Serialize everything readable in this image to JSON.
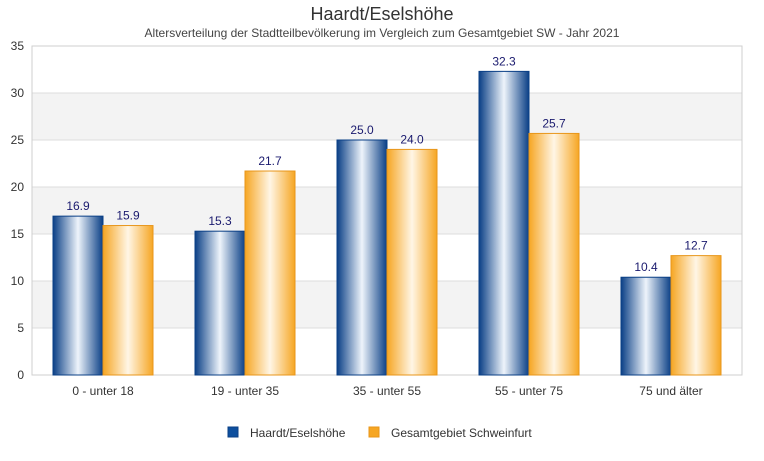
{
  "chart_data": {
    "type": "bar",
    "title": "Haardt/Eselshöhe",
    "subtitle": "Altersverteilung der Stadtteilbevölkerung im Vergleich zum Gesamtgebiet SW - Jahr 2021",
    "xlabel": "",
    "ylabel": "",
    "categories": [
      "0 - unter 18",
      "19 - unter 35",
      "35 - unter 55",
      "55 - unter 75",
      "75 und älter"
    ],
    "series": [
      {
        "name": "Haardt/Eselshöhe",
        "values": [
          16.9,
          15.3,
          25.0,
          32.3,
          10.4
        ],
        "labels": [
          "16.9",
          "15.3",
          "25.0",
          "32.3",
          "10.4"
        ],
        "color": "#0d4f9e"
      },
      {
        "name": "Gesamtgebiet Schweinfurt",
        "values": [
          15.9,
          21.7,
          24.0,
          25.7,
          12.7
        ],
        "labels": [
          "15.9",
          "21.7",
          "24.0",
          "25.7",
          "12.7"
        ],
        "color": "#f6a623"
      }
    ],
    "ylim": [
      0,
      35
    ],
    "yticks": [
      "0",
      "5",
      "10",
      "15",
      "20",
      "25",
      "30",
      "35"
    ],
    "grid": true,
    "legend_position": "bottom"
  }
}
